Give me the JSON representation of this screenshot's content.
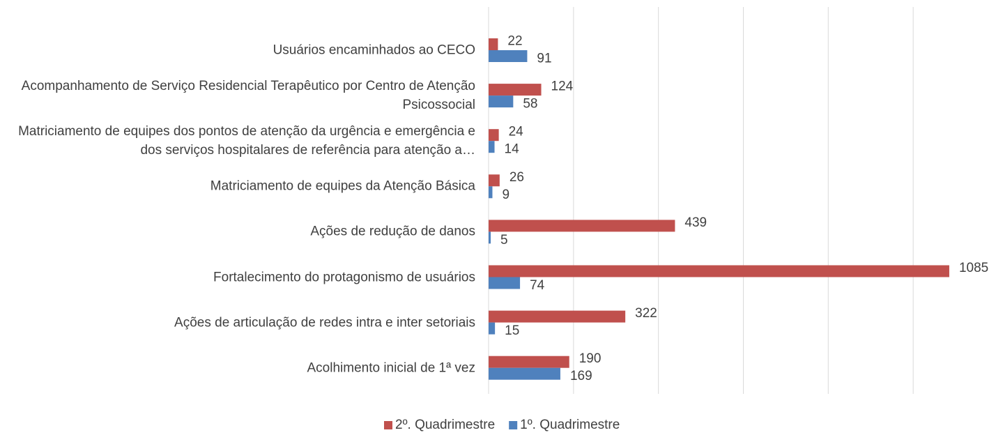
{
  "chart_data": {
    "type": "hbar",
    "categories": [
      "Usuários encaminhados ao CECO",
      "Acompanhamento de Serviço Residencial Terapêutico por Centro de Atenção Psicossocial",
      "Matriciamento de equipes dos pontos de atenção da urgência e emergência e dos serviços hospitalares de referência para atenção a…",
      "Matriciamento de equipes da Atenção Básica",
      "Ações de redução de danos",
      "Fortalecimento do protagonismo de usuários",
      "Ações de articulação de redes intra e inter setoriais",
      "Acolhimento inicial de 1ª vez"
    ],
    "series": [
      {
        "name": "2º. Quadrimestre",
        "color": "#c0504d",
        "values": [
          22,
          124,
          24,
          26,
          439,
          1085,
          322,
          190
        ]
      },
      {
        "name": "1º. Quadrimestre",
        "color": "#4f81bd",
        "values": [
          91,
          58,
          14,
          9,
          5,
          74,
          15,
          169
        ]
      }
    ],
    "xlim": [
      0,
      1200
    ],
    "xticks": [
      0,
      200,
      400,
      600,
      800,
      1000
    ],
    "grid": true,
    "legend": "bottom"
  }
}
